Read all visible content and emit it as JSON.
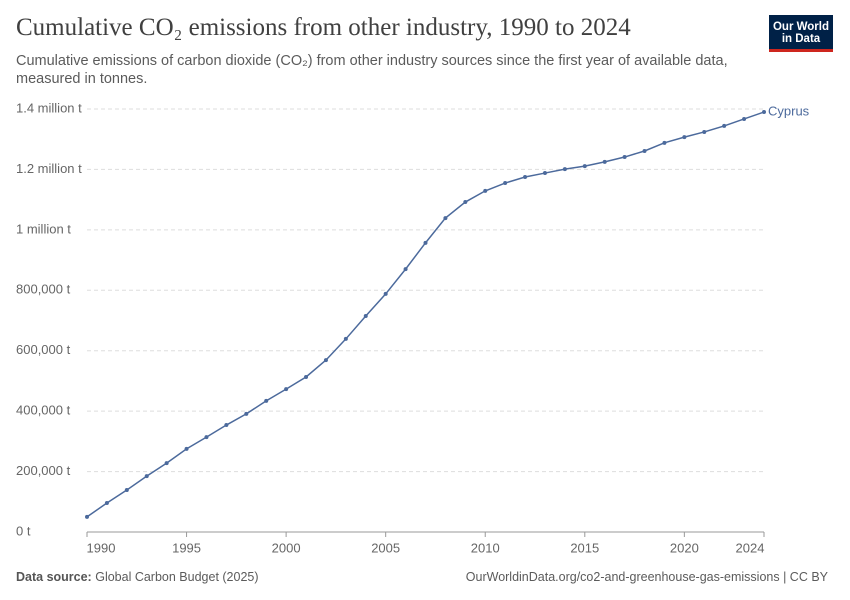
{
  "chart_data": {
    "type": "line",
    "title": "Cumulative CO₂ emissions from other industry, 1990 to 2024",
    "subtitle": "Cumulative emissions of carbon dioxide (CO₂) from other industry sources since the first year of available data, measured in tonnes.",
    "x": [
      1990,
      1991,
      1992,
      1993,
      1994,
      1995,
      1996,
      1997,
      1998,
      1999,
      2000,
      2001,
      2002,
      2003,
      2004,
      2005,
      2006,
      2007,
      2008,
      2009,
      2010,
      2011,
      2012,
      2013,
      2014,
      2015,
      2016,
      2017,
      2018,
      2019,
      2020,
      2021,
      2022,
      2023,
      2024
    ],
    "series": [
      {
        "name": "Cyprus",
        "color": "#4c6a9c",
        "values": [
          50000,
          96000,
          139000,
          185000,
          228000,
          275000,
          314000,
          354000,
          391000,
          434000,
          473000,
          513000,
          569000,
          639000,
          715000,
          788000,
          870000,
          957000,
          1039000,
          1092000,
          1129000,
          1155000,
          1175000,
          1188000,
          1201000,
          1211000,
          1225000,
          1241000,
          1261000,
          1288000,
          1307000,
          1324000,
          1344000,
          1367000,
          1390000
        ]
      }
    ],
    "xlim": [
      1990,
      2024
    ],
    "xticks": [
      1990,
      1995,
      2000,
      2005,
      2010,
      2015,
      2020,
      2024
    ],
    "ylim": [
      0,
      1400000
    ],
    "yticks": [
      {
        "value": 0,
        "label": "0 t"
      },
      {
        "value": 200000,
        "label": "200,000 t"
      },
      {
        "value": 400000,
        "label": "400,000 t"
      },
      {
        "value": 600000,
        "label": "600,000 t"
      },
      {
        "value": 800000,
        "label": "800,000 t"
      },
      {
        "value": 1000000,
        "label": "1 million t"
      },
      {
        "value": 1200000,
        "label": "1.2 million t"
      },
      {
        "value": 1400000,
        "label": "1.4 million t"
      }
    ],
    "grid": true,
    "logo": [
      "Our World",
      "in Data"
    ],
    "source_label": "Data source:",
    "source": "Global Carbon Budget (2025)",
    "credit": "OurWorldinData.org/co2-and-greenhouse-gas-emissions | CC BY"
  }
}
